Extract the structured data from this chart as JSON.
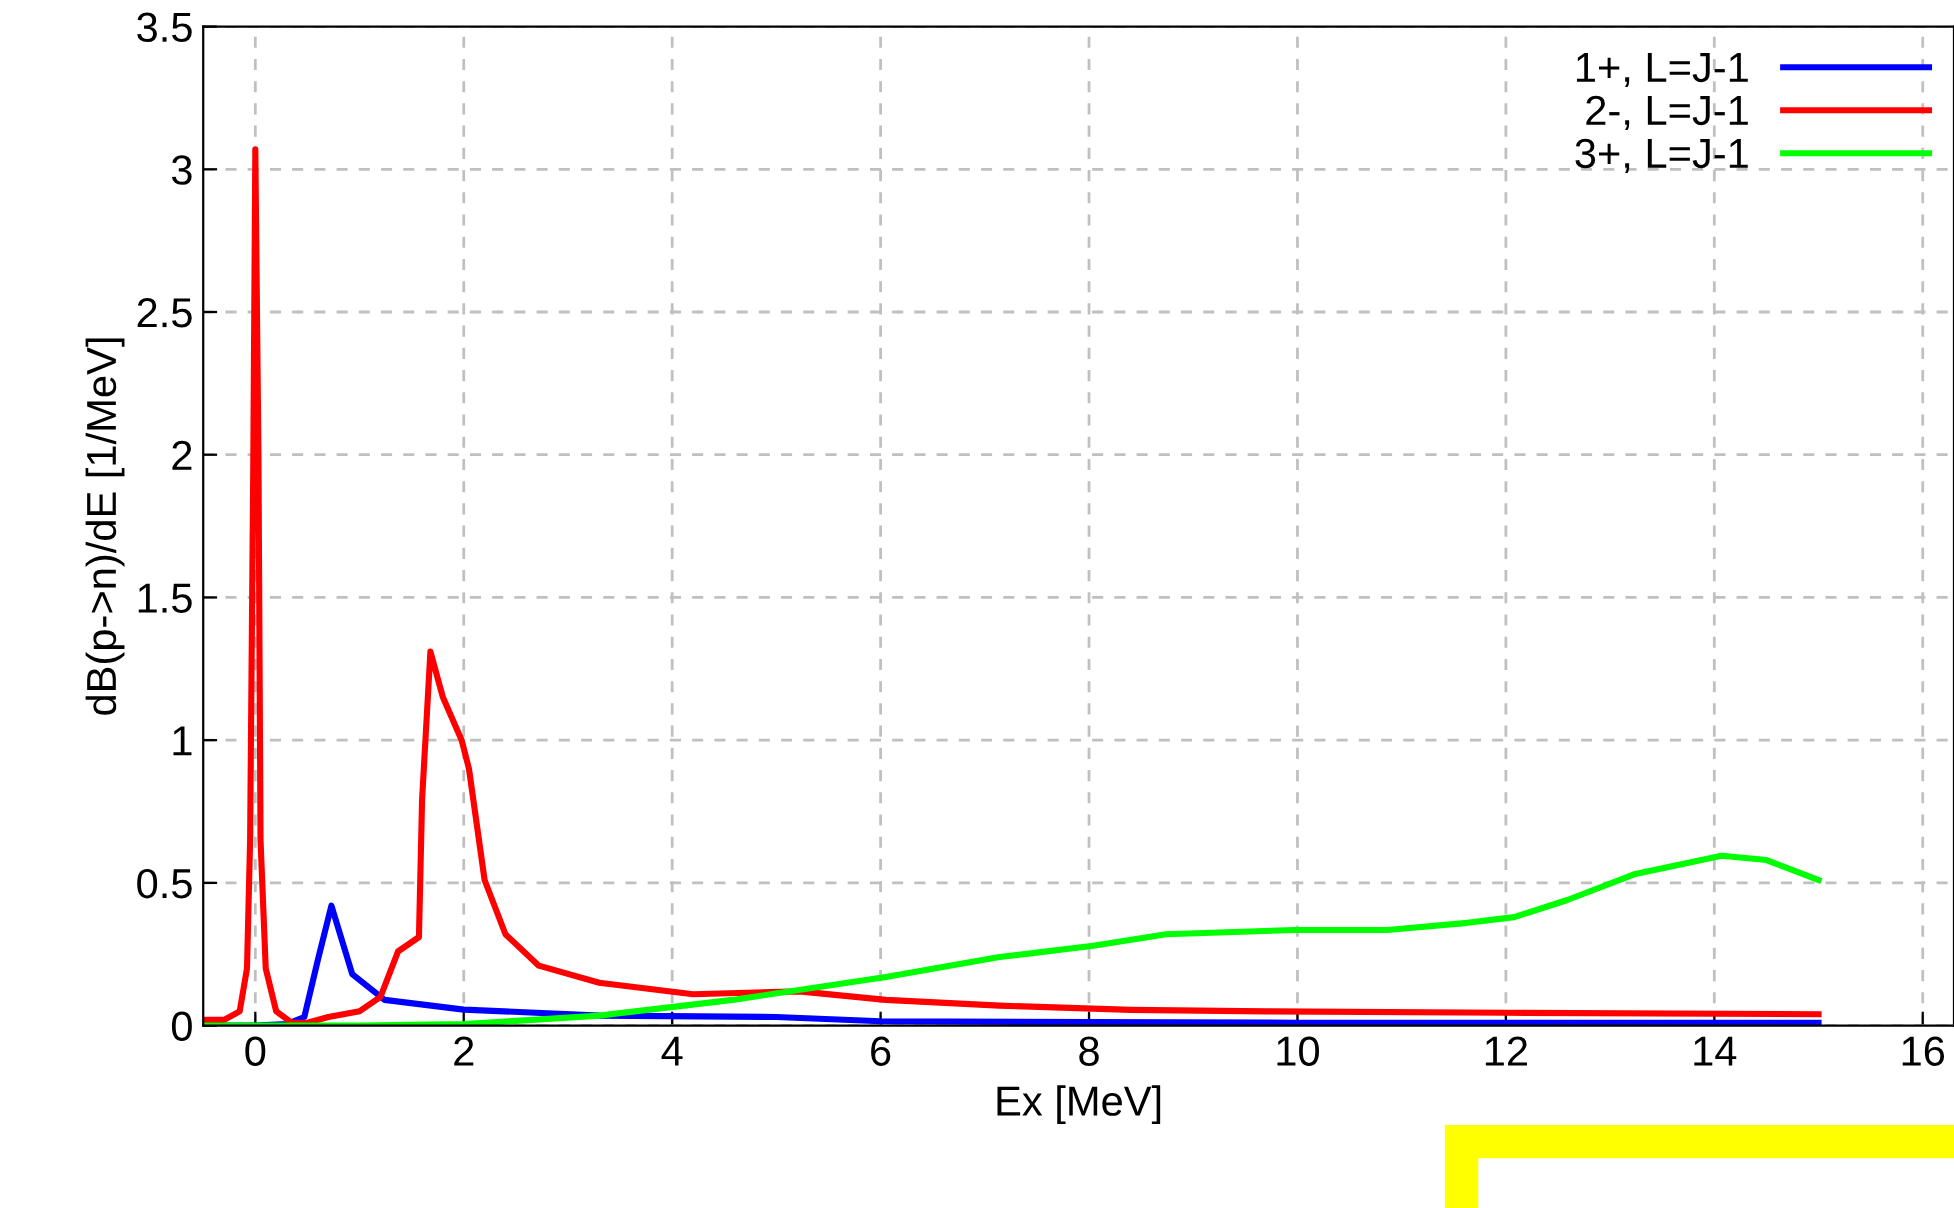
{
  "chart_data": {
    "type": "line",
    "xlabel": "Ex [MeV]",
    "ylabel": "dB(p->n)/dE [1/MeV]",
    "xlim": [
      -0.5,
      16.3
    ],
    "xticks": [
      0,
      2,
      4,
      6,
      8,
      10,
      12,
      14,
      16
    ],
    "ylim": [
      0,
      3.5
    ],
    "yticks": [
      0,
      0.5,
      1,
      1.5,
      2,
      2.5,
      3,
      3.5
    ],
    "grid": true,
    "legend": "top right",
    "line_style": "solid",
    "marker": "none",
    "series": [
      {
        "name": "1+, L=J-1",
        "color": "#0000ff",
        "x": [
          -0.5,
          0.0,
          0.3,
          0.47,
          0.6,
          0.73,
          0.93,
          1.24,
          2.0,
          3.3,
          5.0,
          6.0,
          8.0,
          10.0,
          12.0,
          15.0
        ],
        "values": [
          0.0,
          0.0,
          0.005,
          0.03,
          0.23,
          0.42,
          0.18,
          0.09,
          0.056,
          0.035,
          0.03,
          0.015,
          0.012,
          0.01,
          0.01,
          0.01
        ]
      },
      {
        "name": "2-, L=J-1",
        "color": "#ff0000",
        "x": [
          -0.5,
          -0.3,
          -0.15,
          -0.08,
          -0.05,
          -0.02,
          0.0,
          0.03,
          0.05,
          0.1,
          0.2,
          0.35,
          0.5,
          0.7,
          1.0,
          1.2,
          1.37,
          1.57,
          1.6,
          1.68,
          1.8,
          1.98,
          2.05,
          2.2,
          2.4,
          2.72,
          3.3,
          4.2,
          5.22,
          6.05,
          7.14,
          8.4,
          9.7,
          12.0,
          15.0
        ],
        "values": [
          0.02,
          0.02,
          0.05,
          0.2,
          0.65,
          1.95,
          3.07,
          2.0,
          0.65,
          0.2,
          0.05,
          0.01,
          0.01,
          0.03,
          0.05,
          0.1,
          0.26,
          0.31,
          0.79,
          1.31,
          1.15,
          1.0,
          0.9,
          0.51,
          0.32,
          0.21,
          0.15,
          0.11,
          0.12,
          0.09,
          0.07,
          0.055,
          0.05,
          0.045,
          0.04
        ]
      },
      {
        "name": "3+, L=J-1",
        "color": "#00ff00",
        "x": [
          -0.5,
          1.0,
          2.0,
          3.3,
          4.58,
          6.05,
          7.14,
          8.04,
          8.74,
          9.97,
          10.86,
          11.63,
          12.08,
          12.59,
          13.23,
          14.07,
          14.5,
          15.0
        ],
        "values": [
          0.0,
          0.0,
          0.005,
          0.035,
          0.09,
          0.17,
          0.24,
          0.28,
          0.32,
          0.335,
          0.335,
          0.36,
          0.38,
          0.44,
          0.53,
          0.595,
          0.58,
          0.51
        ]
      }
    ]
  }
}
